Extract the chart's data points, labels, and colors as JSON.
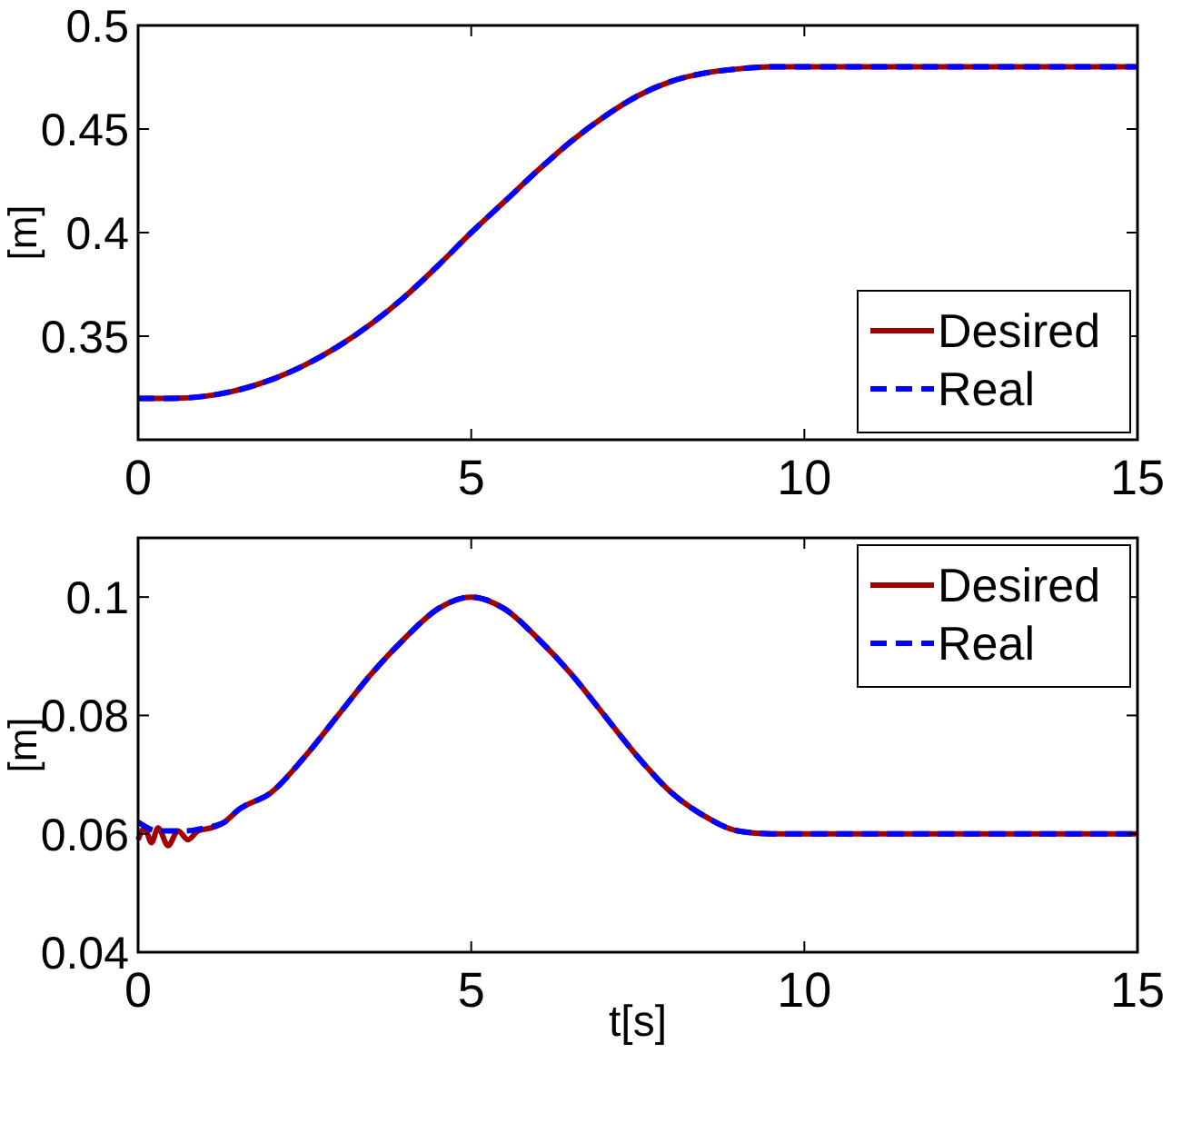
{
  "chart_data": [
    {
      "type": "line",
      "ylabel": "[m]",
      "xlim": [
        0,
        15
      ],
      "xticks": [
        0,
        5,
        10,
        15
      ],
      "ylim": [
        0.3,
        0.5
      ],
      "yticks": [
        {
          "value": 0.3,
          "label": null
        },
        0.35,
        0.4,
        0.45,
        0.5
      ],
      "legend": "bottom right",
      "grid": false,
      "series": [
        {
          "name": "Desired",
          "color": "#a00000",
          "line_style": "solid",
          "x": [
            0,
            0.5,
            1,
            1.5,
            2,
            2.5,
            3,
            3.5,
            4,
            4.5,
            5,
            5.5,
            6,
            6.5,
            7,
            7.5,
            8,
            8.5,
            9,
            9.5,
            10,
            15
          ],
          "values": [
            0.32,
            0.32,
            0.321,
            0.324,
            0.329,
            0.336,
            0.345,
            0.356,
            0.369,
            0.384,
            0.4,
            0.415,
            0.43,
            0.444,
            0.456,
            0.466,
            0.473,
            0.477,
            0.479,
            0.48,
            0.48,
            0.48
          ]
        },
        {
          "name": "Real",
          "color": "#0000ff",
          "line_style": "dashed",
          "x": [
            0,
            0.5,
            1,
            1.5,
            2,
            2.5,
            3,
            3.5,
            4,
            4.5,
            5,
            5.5,
            6,
            6.5,
            7,
            7.5,
            8,
            8.5,
            9,
            9.5,
            10,
            15
          ],
          "values": [
            0.32,
            0.32,
            0.321,
            0.324,
            0.329,
            0.336,
            0.345,
            0.356,
            0.369,
            0.384,
            0.4,
            0.415,
            0.43,
            0.444,
            0.456,
            0.466,
            0.473,
            0.477,
            0.479,
            0.48,
            0.48,
            0.48
          ]
        }
      ]
    },
    {
      "type": "line",
      "xlabel": "t[s]",
      "ylabel": "[m]",
      "xlim": [
        0,
        15
      ],
      "xticks": [
        0,
        5,
        10,
        15
      ],
      "ylim": [
        0.04,
        0.11
      ],
      "yticks": [
        0.04,
        0.06,
        0.08,
        0.1
      ],
      "legend": "top right",
      "grid": false,
      "series": [
        {
          "name": "Desired",
          "color": "#a00000",
          "line_style": "solid",
          "x": [
            0,
            0.1,
            0.2,
            0.3,
            0.45,
            0.6,
            0.75,
            0.9,
            1.1,
            1.3,
            1.5,
            2,
            2.5,
            3,
            3.5,
            4,
            4.5,
            5,
            5.5,
            6,
            6.5,
            7,
            7.5,
            8,
            8.5,
            9,
            9.5,
            10,
            15
          ],
          "values": [
            0.059,
            0.061,
            0.0585,
            0.061,
            0.058,
            0.0605,
            0.059,
            0.0605,
            0.061,
            0.062,
            0.064,
            0.067,
            0.073,
            0.08,
            0.087,
            0.093,
            0.098,
            0.1,
            0.098,
            0.093,
            0.087,
            0.08,
            0.073,
            0.067,
            0.063,
            0.0605,
            0.06,
            0.06,
            0.06
          ]
        },
        {
          "name": "Real",
          "color": "#0000ff",
          "line_style": "dashed",
          "x": [
            0,
            0.3,
            0.7,
            1,
            1.3,
            1.5,
            2,
            2.5,
            3,
            3.5,
            4,
            4.5,
            5,
            5.5,
            6,
            6.5,
            7,
            7.5,
            8,
            8.5,
            9,
            9.5,
            10,
            15
          ],
          "values": [
            0.062,
            0.0605,
            0.0605,
            0.061,
            0.062,
            0.064,
            0.067,
            0.073,
            0.08,
            0.087,
            0.093,
            0.098,
            0.1,
            0.098,
            0.093,
            0.087,
            0.08,
            0.073,
            0.067,
            0.063,
            0.0605,
            0.06,
            0.06,
            0.06
          ]
        }
      ]
    }
  ]
}
